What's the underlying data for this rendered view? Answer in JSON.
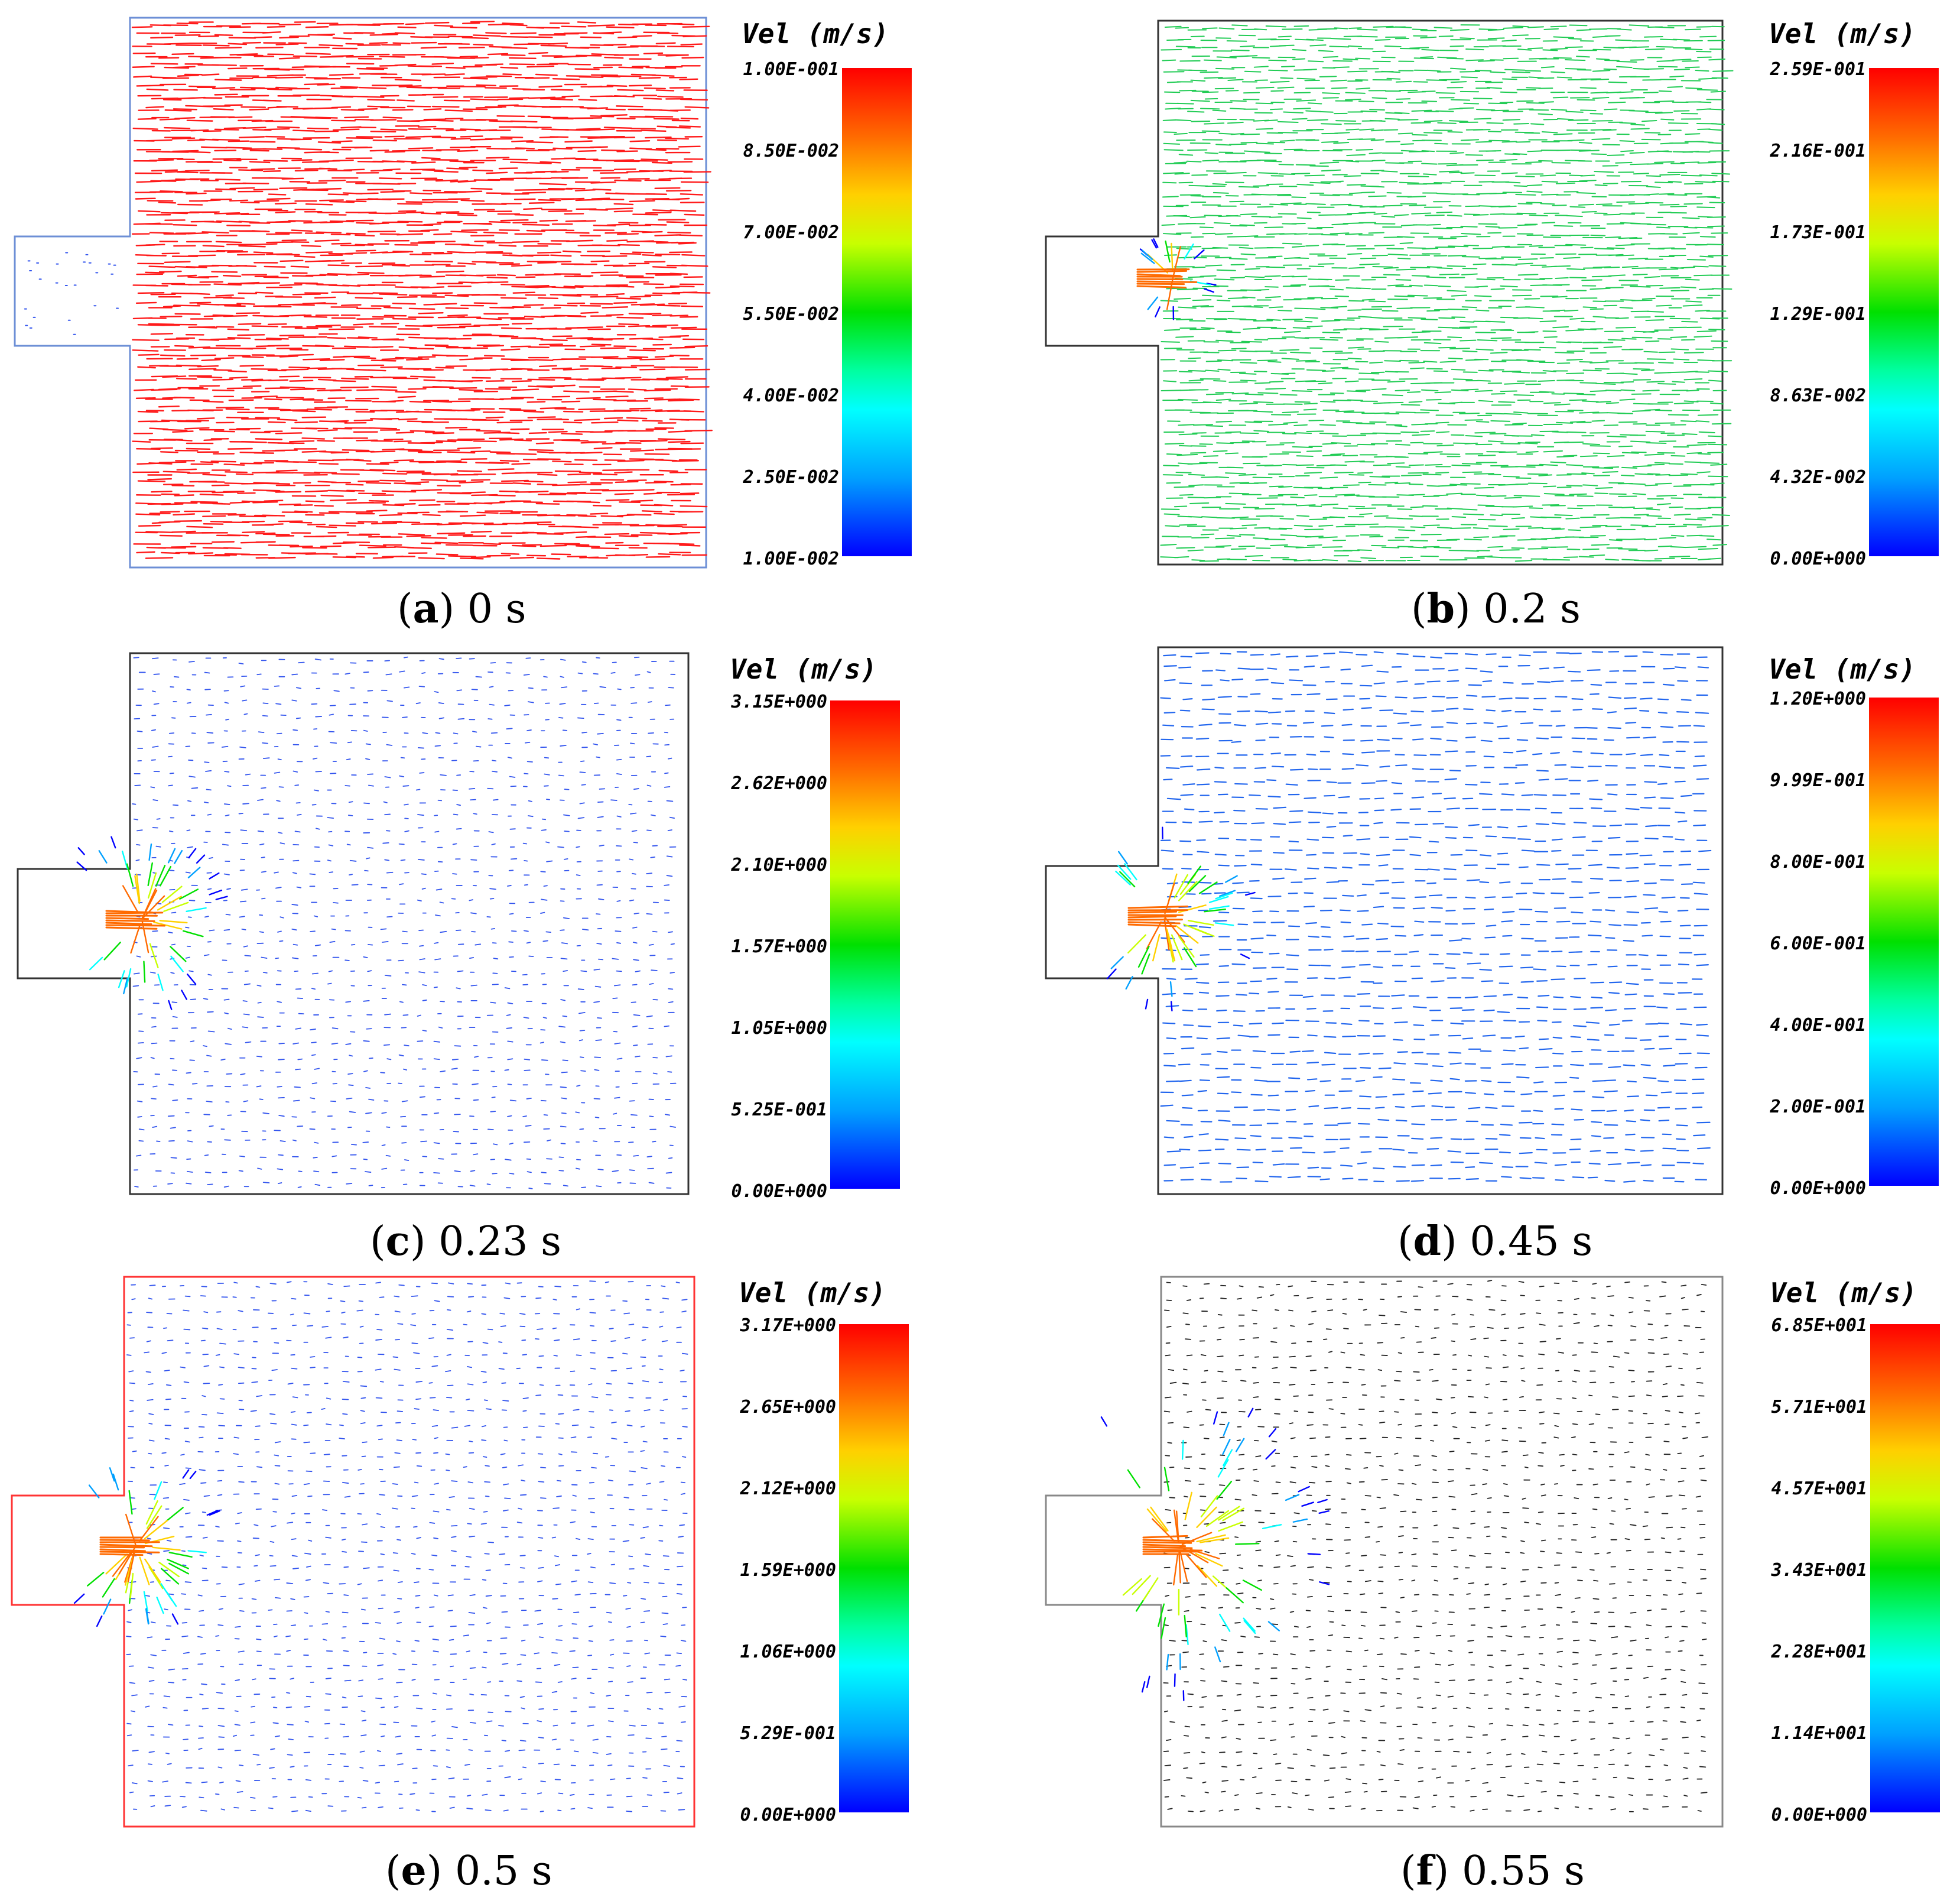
{
  "legend_title": "Vel (m/s)",
  "panels": [
    {
      "id": "a",
      "letter": "a",
      "time": "0 s",
      "outline": "#6d8fd6",
      "arrow_color": "#ff1a1a",
      "ticks": [
        "1.00E-001",
        "8.50E-002",
        "7.00E-002",
        "5.50E-002",
        "4.00E-002",
        "2.50E-002",
        "1.00E-002"
      ]
    },
    {
      "id": "b",
      "letter": "b",
      "time": "0.2 s",
      "outline": "#333333",
      "arrow_color": "#22cc55",
      "ticks": [
        "2.59E-001",
        "2.16E-001",
        "1.73E-001",
        "1.29E-001",
        "8.63E-002",
        "4.32E-002",
        "0.00E+000"
      ]
    },
    {
      "id": "c",
      "letter": "c",
      "time": "0.23 s",
      "outline": "#333333",
      "arrow_color": "#3355ee",
      "ticks": [
        "3.15E+000",
        "2.62E+000",
        "2.10E+000",
        "1.57E+000",
        "1.05E+000",
        "5.25E-001",
        "0.00E+000"
      ]
    },
    {
      "id": "d",
      "letter": "d",
      "time": "0.45 s",
      "outline": "#333333",
      "arrow_color": "#2266ee",
      "ticks": [
        "1.20E+000",
        "9.99E-001",
        "8.00E-001",
        "6.00E-001",
        "4.00E-001",
        "2.00E-001",
        "0.00E+000"
      ]
    },
    {
      "id": "e",
      "letter": "e",
      "time": "0.5 s",
      "outline": "#ff3333",
      "arrow_color": "#3355ee",
      "ticks": [
        "3.17E+000",
        "2.65E+000",
        "2.12E+000",
        "1.59E+000",
        "1.06E+000",
        "5.29E-001",
        "0.00E+000"
      ]
    },
    {
      "id": "f",
      "letter": "f",
      "time": "0.55 s",
      "outline": "#888888",
      "arrow_color": "#222222",
      "ticks": [
        "6.85E+001",
        "5.71E+001",
        "4.57E+001",
        "3.43E+001",
        "2.28E+001",
        "1.14E+001",
        "0.00E+000"
      ]
    }
  ]
}
